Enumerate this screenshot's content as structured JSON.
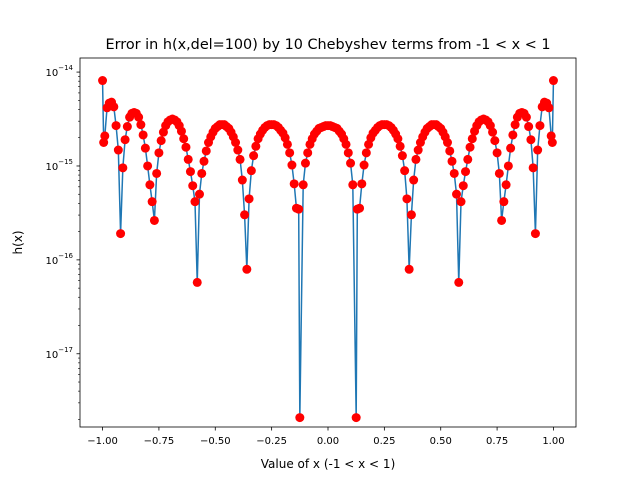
{
  "chart_data": {
    "type": "line",
    "title": "Error in h(x,del=100) by 10 Chebyshev terms from -1 < x < 1",
    "xlabel": "Value of x (-1 < x < 1)",
    "ylabel": "h(x)",
    "xlim": [
      -1.1,
      1.1
    ],
    "ylim_log10": [
      -17.78,
      -13.85
    ],
    "yscale": "log",
    "grid": false,
    "legend": "none",
    "x_ticks": [
      {
        "value": -1.0,
        "label": "−1.00"
      },
      {
        "value": -0.75,
        "label": "−0.75"
      },
      {
        "value": -0.5,
        "label": "−0.50"
      },
      {
        "value": -0.25,
        "label": "−0.25"
      },
      {
        "value": 0.0,
        "label": "0.00"
      },
      {
        "value": 0.25,
        "label": "0.25"
      },
      {
        "value": 0.5,
        "label": "0.50"
      },
      {
        "value": 0.75,
        "label": "0.75"
      },
      {
        "value": 1.0,
        "label": "1.00"
      }
    ],
    "y_ticks": [
      {
        "exp": -14,
        "base": "10",
        "power": "−14"
      },
      {
        "exp": -15,
        "base": "10",
        "power": "−15"
      },
      {
        "exp": -16,
        "base": "10",
        "power": "−16"
      },
      {
        "exp": -17,
        "base": "10",
        "power": "−17"
      }
    ],
    "line_color": "#1f77b4",
    "marker_color": "#ff0000",
    "series": [
      {
        "points": [
          [
            -1.0,
            -14.09
          ],
          [
            -0.995,
            -14.75
          ],
          [
            -0.99,
            -14.68
          ],
          [
            -0.98,
            -14.38
          ],
          [
            -0.97,
            -14.33
          ],
          [
            -0.96,
            -14.32
          ],
          [
            -0.95,
            -14.37
          ],
          [
            -0.94,
            -14.57
          ],
          [
            -0.93,
            -14.83
          ],
          [
            -0.92,
            -15.72
          ],
          [
            -0.91,
            -15.02
          ],
          [
            -0.9,
            -14.72
          ],
          [
            -0.89,
            -14.58
          ],
          [
            -0.88,
            -14.48
          ],
          [
            -0.87,
            -14.44
          ],
          [
            -0.86,
            -14.43
          ],
          [
            -0.85,
            -14.44
          ],
          [
            -0.84,
            -14.48
          ],
          [
            -0.83,
            -14.56
          ],
          [
            -0.82,
            -14.67
          ],
          [
            -0.81,
            -14.81
          ],
          [
            -0.8,
            -15.0
          ],
          [
            -0.79,
            -15.2
          ],
          [
            -0.78,
            -15.38
          ],
          [
            -0.77,
            -15.58
          ],
          [
            -0.76,
            -15.08
          ],
          [
            -0.75,
            -14.86
          ],
          [
            -0.74,
            -14.73
          ],
          [
            -0.73,
            -14.64
          ],
          [
            -0.72,
            -14.57
          ],
          [
            -0.71,
            -14.53
          ],
          [
            -0.7,
            -14.51
          ],
          [
            -0.69,
            -14.5
          ],
          [
            -0.68,
            -14.51
          ],
          [
            -0.67,
            -14.53
          ],
          [
            -0.66,
            -14.57
          ],
          [
            -0.65,
            -14.63
          ],
          [
            -0.64,
            -14.71
          ],
          [
            -0.63,
            -14.8
          ],
          [
            -0.62,
            -14.93
          ],
          [
            -0.61,
            -15.06
          ],
          [
            -0.6,
            -15.21
          ],
          [
            -0.59,
            -15.38
          ],
          [
            -0.58,
            -16.24
          ],
          [
            -0.57,
            -15.3
          ],
          [
            -0.56,
            -15.08
          ],
          [
            -0.55,
            -14.95
          ],
          [
            -0.54,
            -14.84
          ],
          [
            -0.53,
            -14.75
          ],
          [
            -0.52,
            -14.69
          ],
          [
            -0.51,
            -14.64
          ],
          [
            -0.5,
            -14.6
          ],
          [
            -0.49,
            -14.58
          ],
          [
            -0.48,
            -14.56
          ],
          [
            -0.47,
            -14.56
          ],
          [
            -0.46,
            -14.56
          ],
          [
            -0.45,
            -14.58
          ],
          [
            -0.44,
            -14.6
          ],
          [
            -0.43,
            -14.64
          ],
          [
            -0.42,
            -14.69
          ],
          [
            -0.41,
            -14.75
          ],
          [
            -0.4,
            -14.83
          ],
          [
            -0.39,
            -14.93
          ],
          [
            -0.38,
            -15.15
          ],
          [
            -0.37,
            -15.52
          ],
          [
            -0.36,
            -16.1
          ],
          [
            -0.35,
            -15.35
          ],
          [
            -0.34,
            -15.05
          ],
          [
            -0.33,
            -14.89
          ],
          [
            -0.32,
            -14.79
          ],
          [
            -0.31,
            -14.71
          ],
          [
            -0.3,
            -14.66
          ],
          [
            -0.29,
            -14.62
          ],
          [
            -0.28,
            -14.59
          ],
          [
            -0.27,
            -14.57
          ],
          [
            -0.26,
            -14.56
          ],
          [
            -0.25,
            -14.56
          ],
          [
            -0.24,
            -14.56
          ],
          [
            -0.23,
            -14.57
          ],
          [
            -0.22,
            -14.59
          ],
          [
            -0.21,
            -14.62
          ],
          [
            -0.2,
            -14.65
          ],
          [
            -0.19,
            -14.7
          ],
          [
            -0.18,
            -14.77
          ],
          [
            -0.17,
            -14.86
          ],
          [
            -0.16,
            -14.99
          ],
          [
            -0.15,
            -15.19
          ],
          [
            -0.14,
            -15.45
          ],
          [
            -0.13,
            -15.46
          ],
          [
            -0.125,
            -17.68
          ],
          [
            -0.11,
            -15.2
          ],
          [
            -0.1,
            -14.97
          ],
          [
            -0.09,
            -14.86
          ],
          [
            -0.08,
            -14.77
          ],
          [
            -0.07,
            -14.71
          ],
          [
            -0.06,
            -14.66
          ],
          [
            -0.05,
            -14.63
          ],
          [
            -0.04,
            -14.6
          ],
          [
            -0.03,
            -14.59
          ],
          [
            -0.02,
            -14.58
          ],
          [
            -0.01,
            -14.57
          ],
          [
            0.0,
            -14.57
          ],
          [
            0.01,
            -14.57
          ],
          [
            0.02,
            -14.58
          ],
          [
            0.03,
            -14.59
          ],
          [
            0.04,
            -14.6
          ],
          [
            0.05,
            -14.63
          ],
          [
            0.06,
            -14.66
          ],
          [
            0.07,
            -14.71
          ],
          [
            0.08,
            -14.77
          ],
          [
            0.09,
            -14.86
          ],
          [
            0.1,
            -14.97
          ],
          [
            0.11,
            -15.2
          ],
          [
            0.125,
            -17.68
          ],
          [
            0.13,
            -15.46
          ],
          [
            0.14,
            -15.45
          ],
          [
            0.15,
            -15.19
          ],
          [
            0.16,
            -14.99
          ],
          [
            0.17,
            -14.86
          ],
          [
            0.18,
            -14.77
          ],
          [
            0.19,
            -14.7
          ],
          [
            0.2,
            -14.65
          ],
          [
            0.21,
            -14.62
          ],
          [
            0.22,
            -14.59
          ],
          [
            0.23,
            -14.57
          ],
          [
            0.24,
            -14.56
          ],
          [
            0.25,
            -14.56
          ],
          [
            0.26,
            -14.56
          ],
          [
            0.27,
            -14.57
          ],
          [
            0.28,
            -14.59
          ],
          [
            0.29,
            -14.62
          ],
          [
            0.3,
            -14.66
          ],
          [
            0.31,
            -14.71
          ],
          [
            0.32,
            -14.79
          ],
          [
            0.33,
            -14.89
          ],
          [
            0.34,
            -15.05
          ],
          [
            0.35,
            -15.35
          ],
          [
            0.36,
            -16.1
          ],
          [
            0.37,
            -15.52
          ],
          [
            0.38,
            -15.15
          ],
          [
            0.39,
            -14.93
          ],
          [
            0.4,
            -14.83
          ],
          [
            0.41,
            -14.75
          ],
          [
            0.42,
            -14.69
          ],
          [
            0.43,
            -14.64
          ],
          [
            0.44,
            -14.6
          ],
          [
            0.45,
            -14.58
          ],
          [
            0.46,
            -14.56
          ],
          [
            0.47,
            -14.56
          ],
          [
            0.48,
            -14.56
          ],
          [
            0.49,
            -14.58
          ],
          [
            0.5,
            -14.6
          ],
          [
            0.51,
            -14.64
          ],
          [
            0.52,
            -14.69
          ],
          [
            0.53,
            -14.75
          ],
          [
            0.54,
            -14.84
          ],
          [
            0.55,
            -14.95
          ],
          [
            0.56,
            -15.08
          ],
          [
            0.57,
            -15.3
          ],
          [
            0.58,
            -16.24
          ],
          [
            0.59,
            -15.38
          ],
          [
            0.6,
            -15.21
          ],
          [
            0.61,
            -15.06
          ],
          [
            0.62,
            -14.93
          ],
          [
            0.63,
            -14.8
          ],
          [
            0.64,
            -14.71
          ],
          [
            0.65,
            -14.63
          ],
          [
            0.66,
            -14.57
          ],
          [
            0.67,
            -14.53
          ],
          [
            0.68,
            -14.51
          ],
          [
            0.69,
            -14.5
          ],
          [
            0.7,
            -14.51
          ],
          [
            0.71,
            -14.53
          ],
          [
            0.72,
            -14.57
          ],
          [
            0.73,
            -14.64
          ],
          [
            0.74,
            -14.73
          ],
          [
            0.75,
            -14.86
          ],
          [
            0.76,
            -15.08
          ],
          [
            0.77,
            -15.58
          ],
          [
            0.78,
            -15.38
          ],
          [
            0.79,
            -15.2
          ],
          [
            0.8,
            -15.0
          ],
          [
            0.81,
            -14.81
          ],
          [
            0.82,
            -14.67
          ],
          [
            0.83,
            -14.56
          ],
          [
            0.84,
            -14.48
          ],
          [
            0.85,
            -14.44
          ],
          [
            0.86,
            -14.43
          ],
          [
            0.87,
            -14.44
          ],
          [
            0.88,
            -14.48
          ],
          [
            0.89,
            -14.58
          ],
          [
            0.9,
            -14.72
          ],
          [
            0.91,
            -15.02
          ],
          [
            0.92,
            -15.72
          ],
          [
            0.93,
            -14.83
          ],
          [
            0.94,
            -14.57
          ],
          [
            0.95,
            -14.37
          ],
          [
            0.96,
            -14.32
          ],
          [
            0.97,
            -14.33
          ],
          [
            0.98,
            -14.38
          ],
          [
            0.99,
            -14.68
          ],
          [
            0.995,
            -14.75
          ],
          [
            1.0,
            -14.09
          ]
        ]
      }
    ]
  }
}
